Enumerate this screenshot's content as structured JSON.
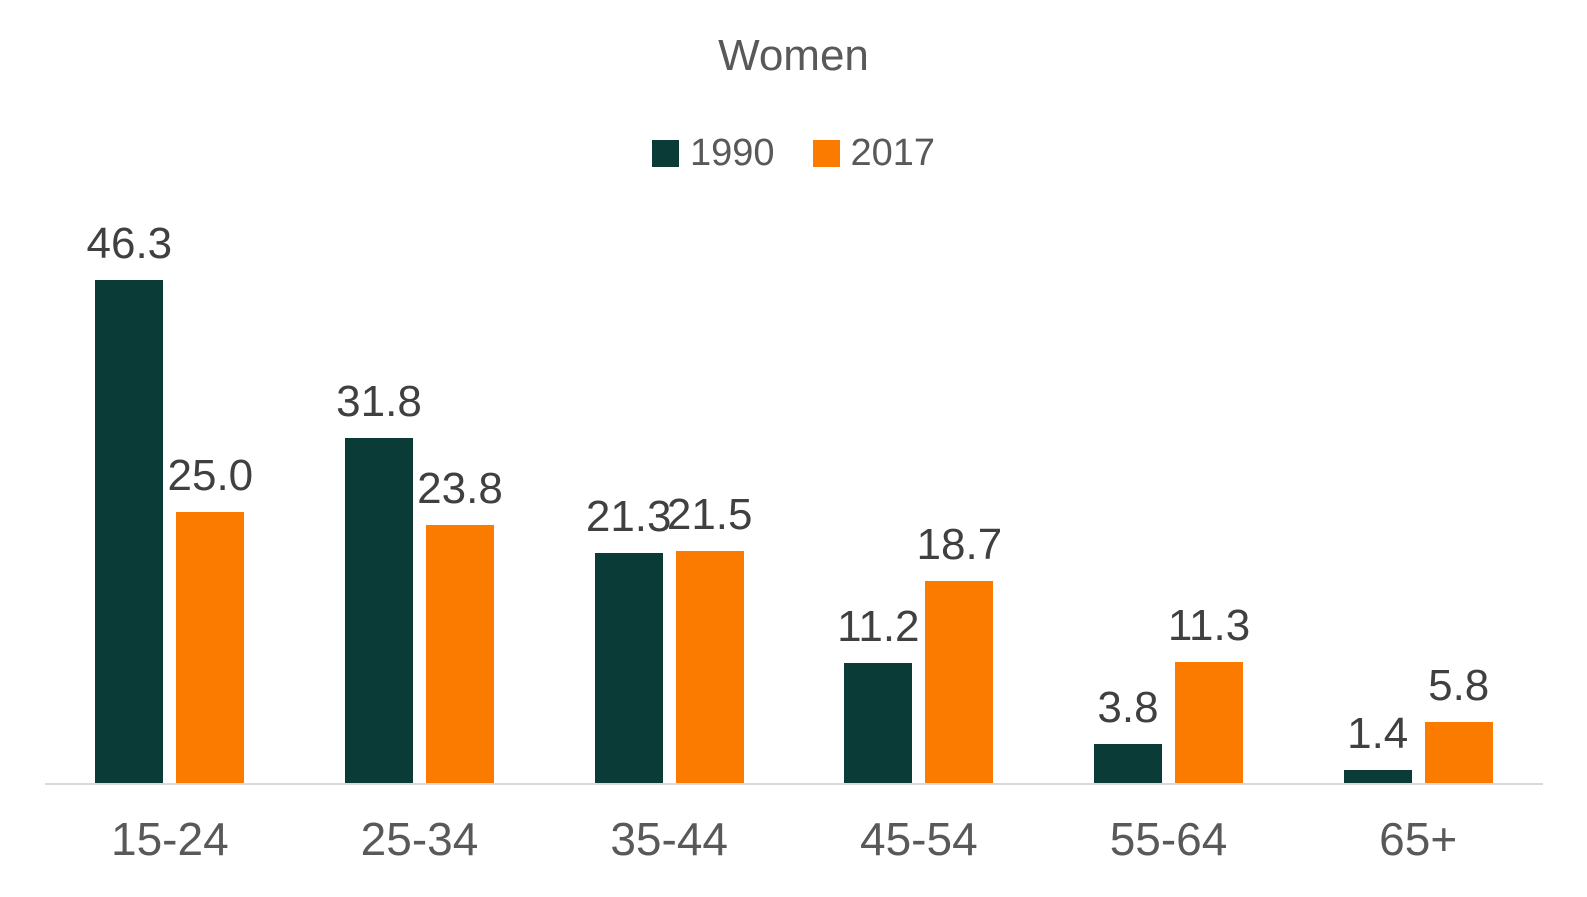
{
  "title": "Women",
  "legend": [
    {
      "label": "1990",
      "color": "#0a3b36"
    },
    {
      "label": "2017",
      "color": "#fb7b00"
    }
  ],
  "colors": {
    "series_1990": "#0a3b36",
    "series_2017": "#fb7b00",
    "title_text": "#595959",
    "axis_text": "#595959",
    "data_label_text": "#404040",
    "axis_line": "#d9d9d9",
    "background": "#ffffff"
  },
  "chart_data": {
    "type": "bar",
    "title": "Women",
    "xlabel": "",
    "ylabel": "",
    "categories": [
      "15-24",
      "25-34",
      "35-44",
      "45-54",
      "55-64",
      "65+"
    ],
    "series": [
      {
        "name": "1990",
        "color": "#0a3b36",
        "values": [
          46.3,
          31.8,
          21.3,
          11.2,
          3.8,
          1.4
        ]
      },
      {
        "name": "2017",
        "color": "#fb7b00",
        "values": [
          25.0,
          23.8,
          21.5,
          18.7,
          11.3,
          5.8
        ]
      }
    ],
    "value_labels": [
      [
        "46.3",
        "31.8",
        "21.3",
        "11.2",
        "3.8",
        "1.4"
      ],
      [
        "25.0",
        "23.8",
        "21.5",
        "18.7",
        "11.3",
        "5.8"
      ]
    ],
    "ylim": [
      0,
      50
    ],
    "grid": false,
    "y_axis_visible": false,
    "data_labels": true,
    "legend_position": "top"
  }
}
